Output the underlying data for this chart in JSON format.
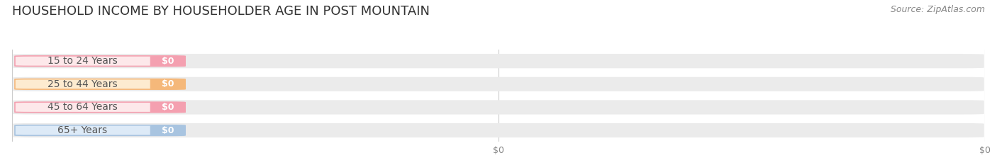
{
  "title": "HOUSEHOLD INCOME BY HOUSEHOLDER AGE IN POST MOUNTAIN",
  "source": "Source: ZipAtlas.com",
  "categories": [
    "15 to 24 Years",
    "25 to 44 Years",
    "45 to 64 Years",
    "65+ Years"
  ],
  "values": [
    0,
    0,
    0,
    0
  ],
  "bar_colors": [
    "#f4a0b0",
    "#f5b87a",
    "#f4a0b0",
    "#a8c4e0"
  ],
  "label_bg_colors": [
    "#fde8ea",
    "#fdebd0",
    "#fde8ea",
    "#ddeaf7"
  ],
  "xlim": [
    0,
    1
  ],
  "background_color": "#f5f5f5",
  "bar_bg_color": "#ebebeb",
  "title_fontsize": 13,
  "source_fontsize": 9,
  "label_fontsize": 10,
  "value_fontsize": 9,
  "tick_fontsize": 9,
  "bar_height": 0.62,
  "fig_bg": "#ffffff"
}
